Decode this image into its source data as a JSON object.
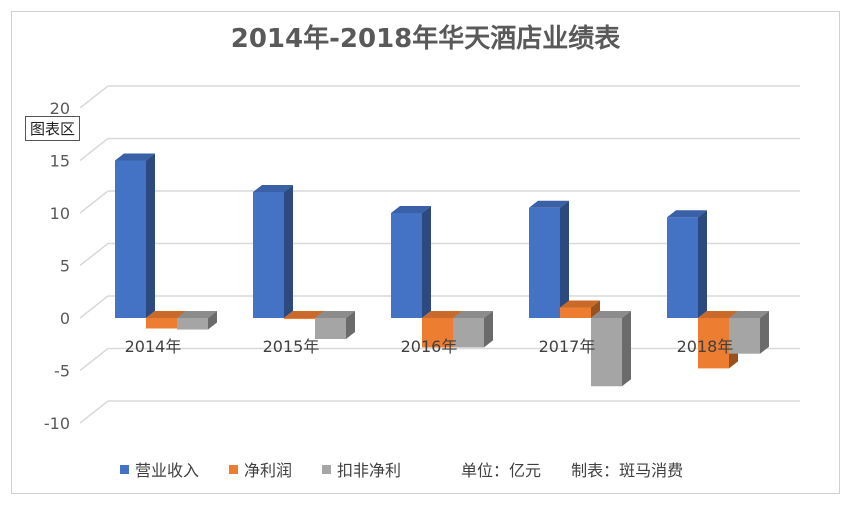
{
  "chart_data": {
    "type": "bar",
    "title": "2014年-2018年华天酒店业绩表",
    "categories": [
      "2014年",
      "2015年",
      "2016年",
      "2017年",
      "2018年"
    ],
    "series": [
      {
        "name": "营业收入",
        "color": "#4472C4",
        "values": [
          15.0,
          12.0,
          10.0,
          10.5,
          9.6
        ]
      },
      {
        "name": "净利润",
        "color": "#ED7D31",
        "values": [
          -1.0,
          -0.1,
          -2.8,
          1.0,
          -4.8
        ]
      },
      {
        "name": "扣非净利",
        "color": "#A5A5A5",
        "values": [
          -1.1,
          -2.0,
          -2.8,
          -6.5,
          -3.4
        ]
      }
    ],
    "y_ticks": [
      "20",
      "15",
      "10",
      "5",
      "0",
      "-5",
      "-10"
    ],
    "ylim": [
      -10,
      20
    ],
    "grid": true,
    "legend_position": "bottom"
  },
  "tooltip": "图表区",
  "notes": {
    "unit": "单位：亿元",
    "maker": "制表：斑马消费"
  }
}
